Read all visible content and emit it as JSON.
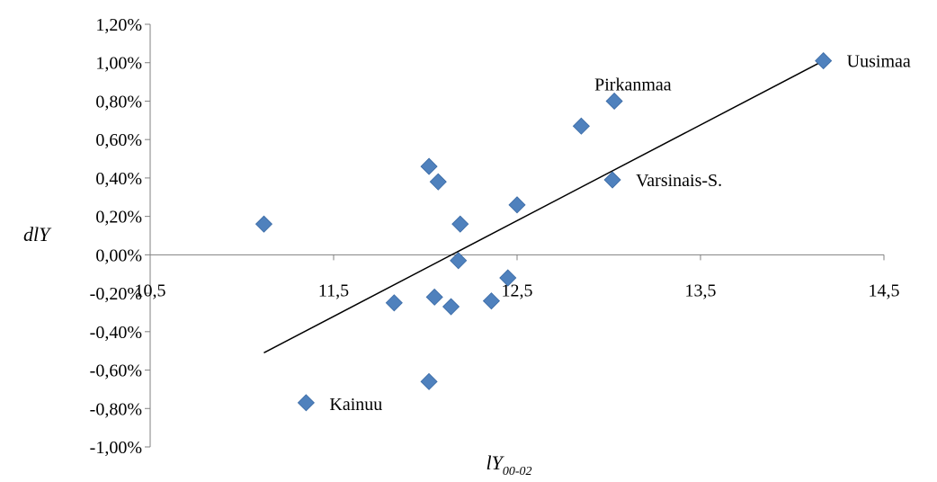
{
  "chart_data": {
    "type": "scatter",
    "xlabel": "lY",
    "xlabel_sub": "00-02",
    "ylabel": "dlY",
    "xlim": [
      10.5,
      14.5
    ],
    "ylim": [
      -1.0,
      1.2
    ],
    "x_ticks": [
      10.5,
      11.5,
      12.5,
      13.5,
      14.5
    ],
    "x_tick_labels": [
      "10,5",
      "11,5",
      "12,5",
      "13,5",
      "14,5"
    ],
    "y_ticks": [
      1.2,
      1.0,
      0.8,
      0.6,
      0.4,
      0.2,
      0.0,
      -0.2,
      -0.4,
      -0.6,
      -0.8,
      -1.0
    ],
    "y_tick_labels": [
      "1,20%",
      "1,00%",
      "0,80%",
      "0,60%",
      "0,40%",
      "0,20%",
      "0,00%",
      "-0,20%",
      "-0,40%",
      "-0,60%",
      "-0,80%",
      "-1,00%"
    ],
    "grid": false,
    "marker": "diamond",
    "marker_color": "#4f81bd",
    "points": [
      {
        "x": 14.17,
        "y": 1.01
      },
      {
        "x": 13.03,
        "y": 0.8
      },
      {
        "x": 12.85,
        "y": 0.67
      },
      {
        "x": 13.02,
        "y": 0.39
      },
      {
        "x": 12.02,
        "y": 0.46
      },
      {
        "x": 12.07,
        "y": 0.38
      },
      {
        "x": 12.5,
        "y": 0.26
      },
      {
        "x": 12.19,
        "y": 0.16
      },
      {
        "x": 11.12,
        "y": 0.16
      },
      {
        "x": 12.18,
        "y": -0.03
      },
      {
        "x": 12.45,
        "y": -0.12
      },
      {
        "x": 12.05,
        "y": -0.22
      },
      {
        "x": 11.83,
        "y": -0.25
      },
      {
        "x": 12.14,
        "y": -0.27
      },
      {
        "x": 12.36,
        "y": -0.24
      },
      {
        "x": 12.02,
        "y": -0.66
      },
      {
        "x": 11.35,
        "y": -0.77
      }
    ],
    "annotations": [
      {
        "text": "Uusimaa",
        "x": 14.17,
        "y": 1.01
      },
      {
        "text": "Pirkanmaa",
        "x": 13.03,
        "y": 0.8
      },
      {
        "text": "Varsinais-S.",
        "x": 13.02,
        "y": 0.39
      },
      {
        "text": "Kainuu",
        "x": 11.35,
        "y": -0.77
      }
    ],
    "trendline": {
      "x": [
        11.12,
        14.17
      ],
      "y": [
        -0.51,
        1.01
      ],
      "color": "#000000"
    }
  }
}
